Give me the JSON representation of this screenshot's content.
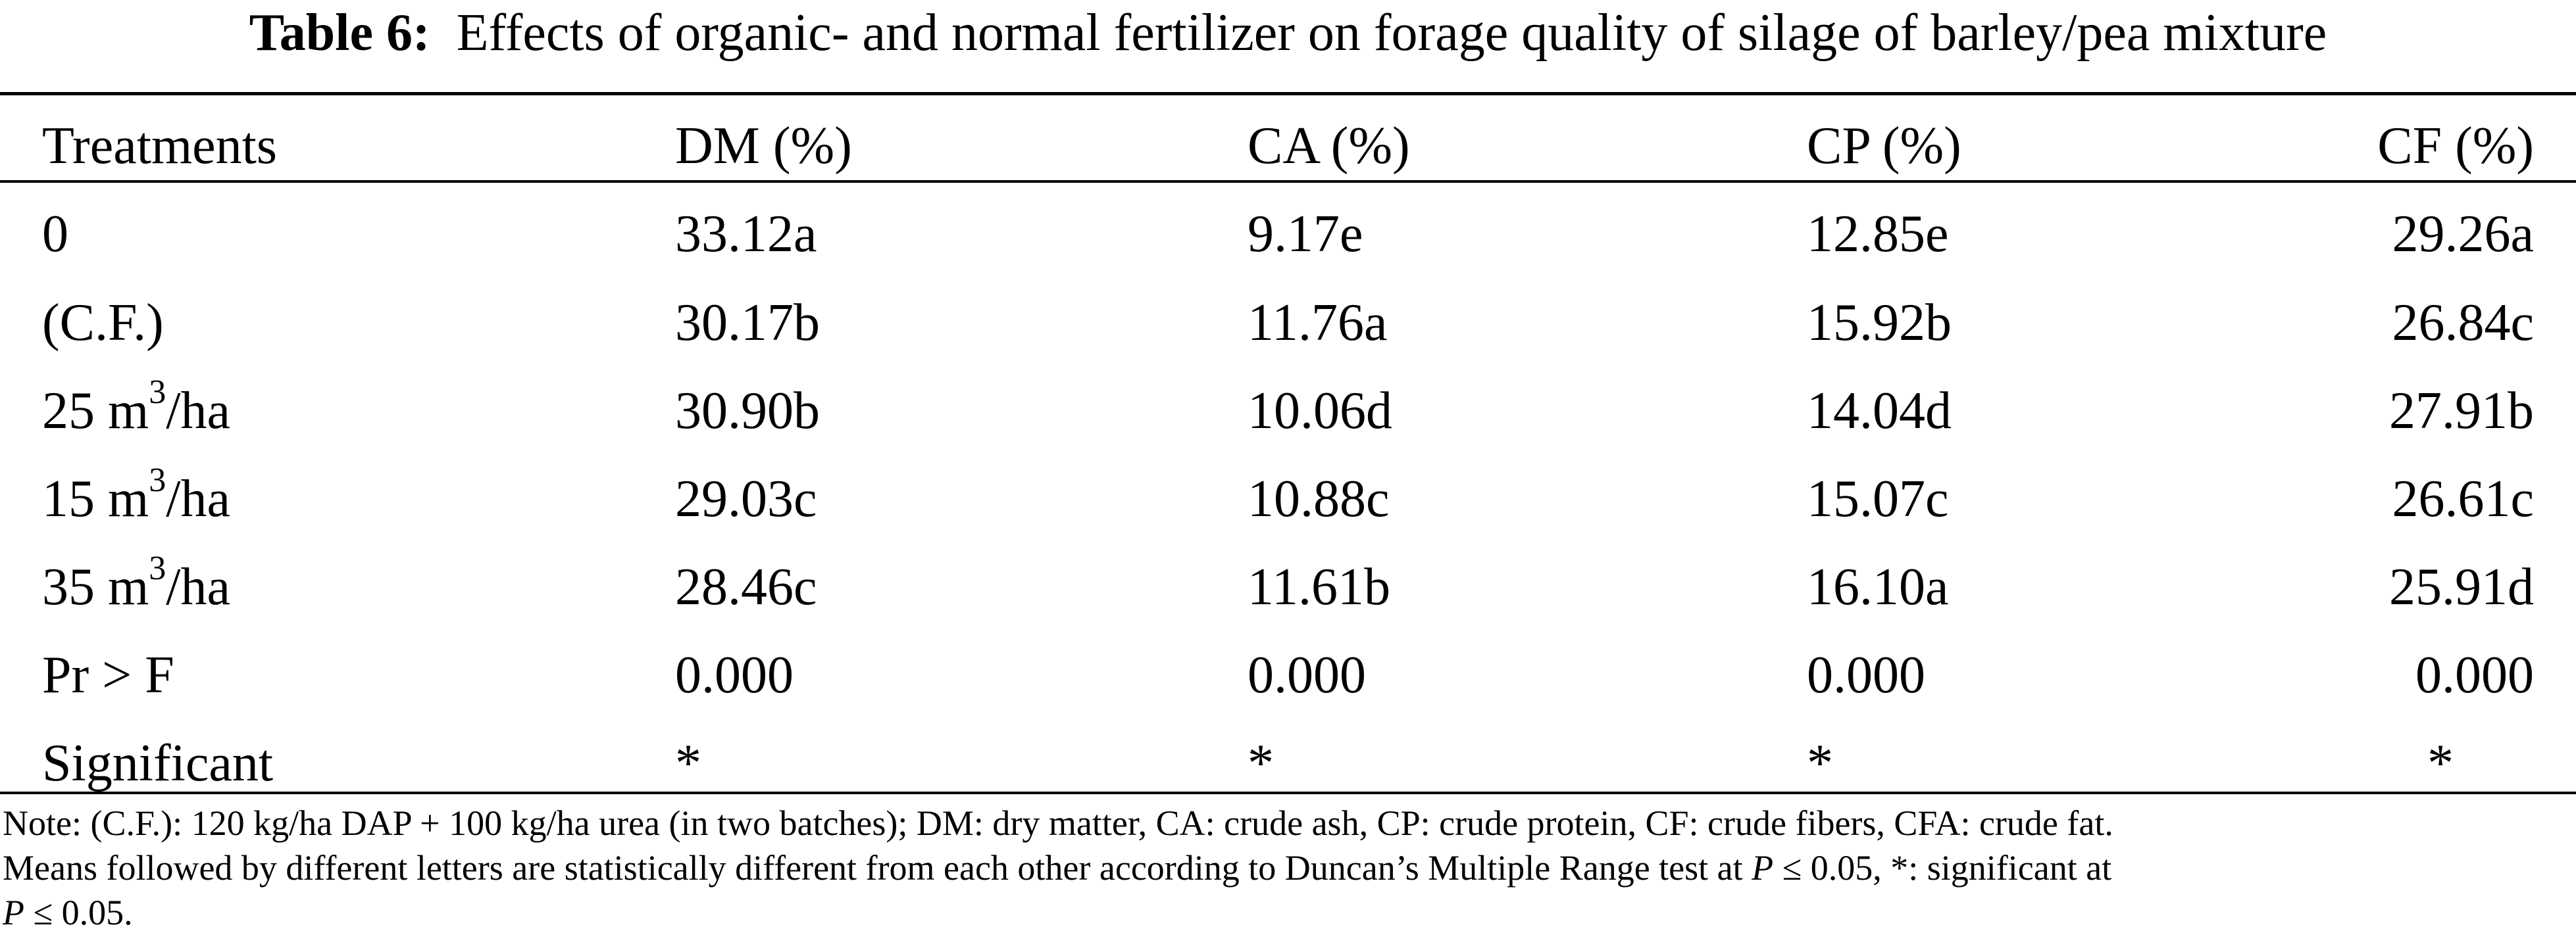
{
  "title": {
    "label": "Table 6:",
    "text": "Effects of organic- and normal fertilizer on forage quality of silage of barley/pea mixture"
  },
  "table": {
    "headers": [
      "Treatments",
      "DM (%)",
      "CA (%)",
      "CP (%)",
      "CF (%)"
    ],
    "rows": [
      {
        "treatment": "0",
        "unit_exponent": "",
        "unit_suffix": "",
        "dm": "33.12a",
        "ca": "9.17e",
        "cp": "12.85e",
        "cf": "29.26a"
      },
      {
        "treatment": "(C.F.)",
        "unit_exponent": "",
        "unit_suffix": "",
        "dm": "30.17b",
        "ca": "11.76a",
        "cp": "15.92b",
        "cf": "26.84c"
      },
      {
        "treatment": "25 m",
        "unit_exponent": "3",
        "unit_suffix": "/ha",
        "dm": "30.90b",
        "ca": "10.06d",
        "cp": "14.04d",
        "cf": "27.91b"
      },
      {
        "treatment": "15 m",
        "unit_exponent": "3",
        "unit_suffix": "/ha",
        "dm": "29.03c",
        "ca": "10.88c",
        "cp": "15.07c",
        "cf": "26.61c"
      },
      {
        "treatment": "35 m",
        "unit_exponent": "3",
        "unit_suffix": "/ha",
        "dm": "28.46c",
        "ca": "11.61b",
        "cp": "16.10a",
        "cf": "25.91d"
      },
      {
        "treatment": "Pr > F",
        "unit_exponent": "",
        "unit_suffix": "",
        "dm": "0.000",
        "ca": "0.000",
        "cp": "0.000",
        "cf": "0.000"
      },
      {
        "treatment": "Significant",
        "unit_exponent": "",
        "unit_suffix": "",
        "dm": "*",
        "ca": "*",
        "cp": "*",
        "cf": "*"
      }
    ]
  },
  "note": {
    "line1": "Note: (C.F.): 120 kg/ha DAP + 100 kg/ha urea (in two batches); DM: dry matter, CA: crude ash, CP: crude protein, CF: crude fibers, CFA: crude fat.",
    "line2_a": "Means followed by different letters are statistically different from each other according to Duncan’s Multiple Range test at ",
    "p_symbol": "P",
    "line2_b": " ≤ 0.05, *: significant at",
    "line3_b": " ≤ 0.05."
  }
}
